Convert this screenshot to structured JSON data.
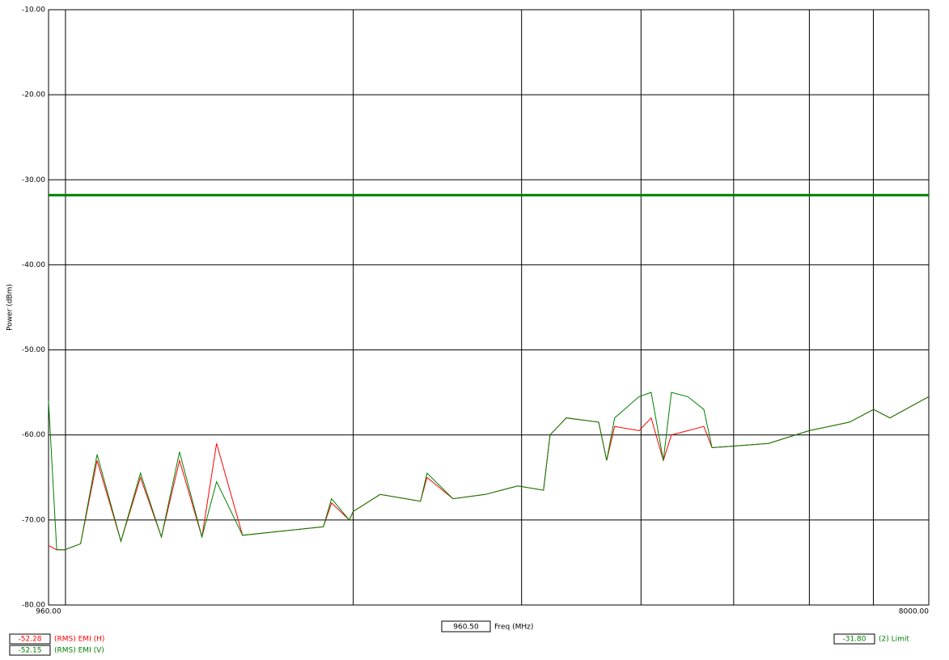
{
  "chart_data": {
    "type": "line",
    "y_label": "Power (dBm)",
    "x_label": "Freq (MHz)",
    "cursor": "960.50",
    "xscale": "log",
    "grid": true,
    "xlim": [
      960,
      8000
    ],
    "ylim": [
      -80,
      -10
    ],
    "xticks": [
      {
        "value": 960,
        "label": "960.00"
      },
      {
        "value": 1000,
        "label": null
      },
      {
        "value": 2000,
        "label": null
      },
      {
        "value": 3000,
        "label": null
      },
      {
        "value": 4000,
        "label": null
      },
      {
        "value": 5000,
        "label": null
      },
      {
        "value": 6000,
        "label": null
      },
      {
        "value": 7000,
        "label": null
      },
      {
        "value": 8000,
        "label": "8000.00"
      }
    ],
    "yticks": [
      {
        "value": -80,
        "label": "-80.00"
      },
      {
        "value": -70,
        "label": "-70.00"
      },
      {
        "value": -60,
        "label": "-60.00"
      },
      {
        "value": -50,
        "label": "-50.00"
      },
      {
        "value": -40,
        "label": "-40.00"
      },
      {
        "value": -30,
        "label": "-30.00"
      },
      {
        "value": -20,
        "label": "-20.00"
      },
      {
        "value": -10,
        "label": "-10.00"
      }
    ],
    "series": [
      {
        "name": "(RMS) EMI (H)",
        "color": "#ff0000",
        "readout": "-52.28",
        "x": [
          960,
          979,
          998,
          1037,
          1079,
          1143,
          1198,
          1260,
          1316,
          1389,
          1439,
          1532,
          1689,
          1861,
          1898,
          1981,
          2000,
          2134,
          2352,
          2389,
          2543,
          2749,
          2972,
          3163,
          3213,
          3341,
          3612,
          3683,
          3754,
          3981,
          4099,
          4221,
          4304,
          4476,
          4654,
          4746,
          5438,
          5995,
          6611,
          7004,
          7285,
          8000
        ],
        "values": [
          -73,
          -73.5,
          -73.5,
          -72.8,
          -63,
          -72.5,
          -65,
          -72,
          -63,
          -72,
          -61,
          -71.8,
          -71.3,
          -70.8,
          -68,
          -70,
          -69,
          -67,
          -67.8,
          -65,
          -67.5,
          -67,
          -66,
          -66.5,
          -60,
          -58,
          -58.5,
          -63,
          -59,
          -59.5,
          -58,
          -63,
          -60,
          -59.5,
          -59,
          -61.5,
          -61,
          -59.5,
          -58.5,
          -57,
          -58,
          -55.5
        ]
      },
      {
        "name": "(RMS) EMI (V)",
        "color": "#008000",
        "readout": "-52.15",
        "x": [
          960,
          979,
          998,
          1037,
          1079,
          1143,
          1198,
          1260,
          1316,
          1389,
          1439,
          1532,
          1689,
          1861,
          1898,
          1981,
          2000,
          2134,
          2352,
          2389,
          2543,
          2749,
          2972,
          3163,
          3213,
          3341,
          3612,
          3683,
          3754,
          3981,
          4099,
          4221,
          4304,
          4476,
          4654,
          4746,
          5438,
          5995,
          6611,
          7004,
          7285,
          8000
        ],
        "values": [
          -56,
          -73.5,
          -73.5,
          -72.8,
          -62.3,
          -72.5,
          -64.5,
          -72,
          -62,
          -72,
          -65.5,
          -71.8,
          -71.3,
          -70.8,
          -67.5,
          -70,
          -69,
          -67,
          -67.8,
          -64.5,
          -67.5,
          -67,
          -66,
          -66.5,
          -60,
          -58,
          -58.5,
          -63,
          -58,
          -55.5,
          -55,
          -63,
          -55,
          -55.5,
          -57,
          -61.5,
          -61,
          -59.5,
          -58.5,
          -57,
          -58,
          -55.5
        ]
      },
      {
        "name": "(2) Limit",
        "color": "#008000",
        "readout": "-31.80",
        "x": [
          960,
          8000
        ],
        "values": [
          -31.8,
          -31.8
        ]
      }
    ]
  }
}
